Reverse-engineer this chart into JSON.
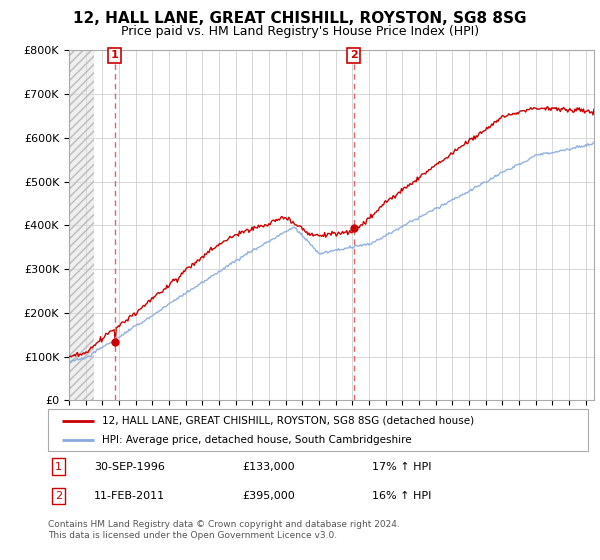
{
  "title": "12, HALL LANE, GREAT CHISHILL, ROYSTON, SG8 8SG",
  "subtitle": "Price paid vs. HM Land Registry's House Price Index (HPI)",
  "ylim": [
    0,
    800000
  ],
  "yticks": [
    0,
    100000,
    200000,
    300000,
    400000,
    500000,
    600000,
    700000,
    800000
  ],
  "ytick_labels": [
    "£0",
    "£100K",
    "£200K",
    "£300K",
    "£400K",
    "£500K",
    "£600K",
    "£700K",
    "£800K"
  ],
  "xlim": [
    1994.0,
    2025.5
  ],
  "sale1_date": 1996.75,
  "sale1_price": 133000,
  "sale2_date": 2011.08,
  "sale2_price": 395000,
  "line_color_price": "#cc0000",
  "line_color_hpi": "#88aadd",
  "marker_color": "#cc0000",
  "dashed_line_color": "#dd6666",
  "legend_label1": "12, HALL LANE, GREAT CHISHILL, ROYSTON, SG8 8SG (detached house)",
  "legend_label2": "HPI: Average price, detached house, South Cambridgeshire",
  "table_row1": [
    "1",
    "30-SEP-1996",
    "£133,000",
    "17% ↑ HPI"
  ],
  "table_row2": [
    "2",
    "11-FEB-2011",
    "£395,000",
    "16% ↑ HPI"
  ],
  "footnote1": "Contains HM Land Registry data © Crown copyright and database right 2024.",
  "footnote2": "This data is licensed under the Open Government Licence v3.0.",
  "hatch_color": "#d8d8d8",
  "grid_color": "#c8c8c8",
  "box_color": "#cc0000",
  "hatch_end": 1995.5
}
